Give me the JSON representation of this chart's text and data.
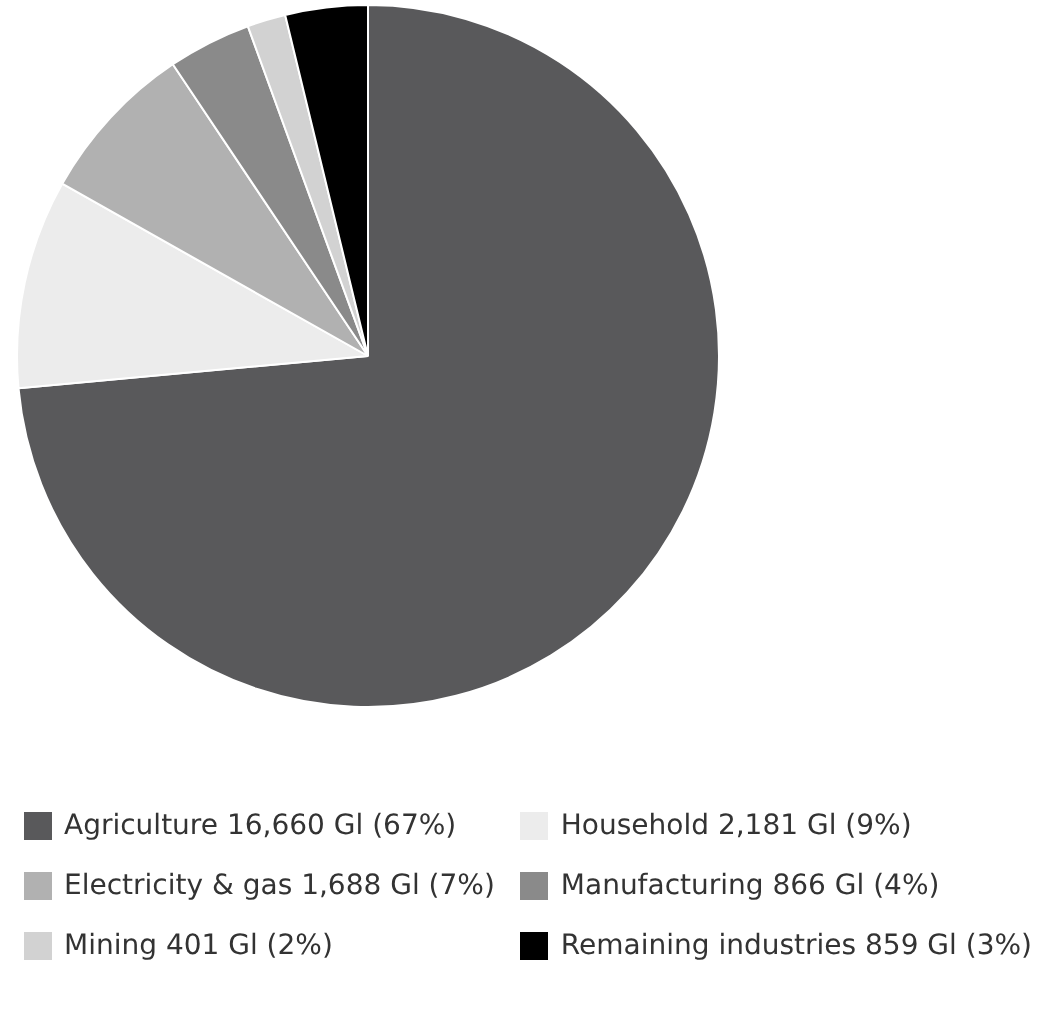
{
  "chart_data": {
    "type": "pie",
    "categories": [
      "Agriculture 16,660 Gl (67%)",
      "Household 2,181 Gl (9%)",
      "Electricity & gas 1,688 Gl (7%)",
      "Manufacturing 866 Gl (4%)",
      "Mining 401 Gl (2%)",
      "Remaining industries 859 Gl (3%)"
    ],
    "values": [
      16660,
      2181,
      1688,
      866,
      401,
      859
    ],
    "colors": [
      "#59595b",
      "#ececec",
      "#b1b1b1",
      "#8a8a8a",
      "#d2d2d2",
      "#000000"
    ],
    "legend": "bottom"
  }
}
